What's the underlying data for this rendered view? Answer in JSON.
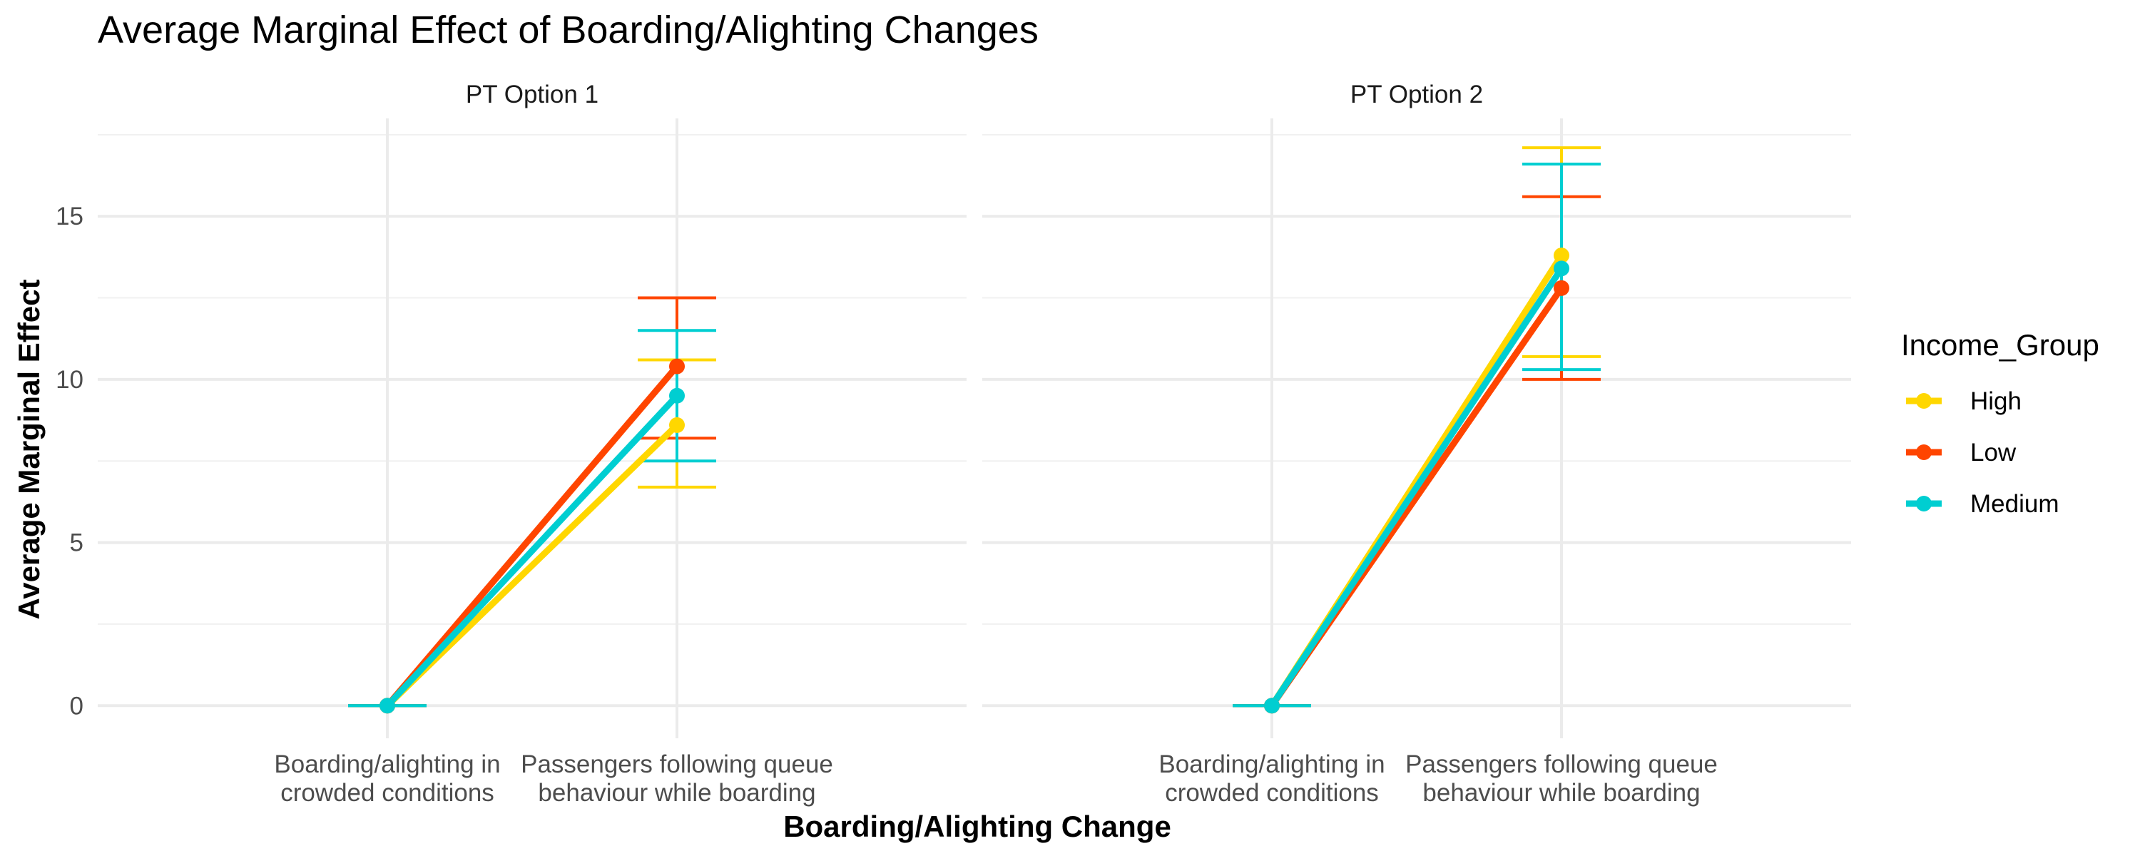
{
  "chart_data": {
    "type": "line",
    "title": "Average Marginal Effect of Boarding/Alighting Changes",
    "xlabel": "Boarding/Alighting Change",
    "ylabel": "Average Marginal Effect",
    "ylim": [
      -1,
      18
    ],
    "yticks": [
      0,
      5,
      10,
      15
    ],
    "categories": [
      [
        "Boarding/alighting in",
        "crowded conditions"
      ],
      [
        "Passengers following queue",
        "behaviour while boarding"
      ]
    ],
    "legend": {
      "title": "Income_Group",
      "position": "right"
    },
    "grid": true,
    "panels": [
      {
        "label": "PT Option 1",
        "series": [
          {
            "name": "High",
            "color": "#FFD700",
            "values": [
              0,
              8.6
            ],
            "err_low": [
              0,
              6.7
            ],
            "err_high": [
              0,
              10.6
            ]
          },
          {
            "name": "Low",
            "color": "#FF4500",
            "values": [
              0,
              10.4
            ],
            "err_low": [
              0,
              8.2
            ],
            "err_high": [
              0,
              12.5
            ]
          },
          {
            "name": "Medium",
            "color": "#00CED1",
            "values": [
              0,
              9.5
            ],
            "err_low": [
              0,
              7.5
            ],
            "err_high": [
              0,
              11.5
            ]
          }
        ]
      },
      {
        "label": "PT Option 2",
        "series": [
          {
            "name": "High",
            "color": "#FFD700",
            "values": [
              0,
              13.8
            ],
            "err_low": [
              0,
              10.7
            ],
            "err_high": [
              0,
              17.1
            ]
          },
          {
            "name": "Low",
            "color": "#FF4500",
            "values": [
              0,
              12.8
            ],
            "err_low": [
              0,
              10.0
            ],
            "err_high": [
              0,
              15.6
            ]
          },
          {
            "name": "Medium",
            "color": "#00CED1",
            "values": [
              0,
              13.4
            ],
            "err_low": [
              0,
              10.3
            ],
            "err_high": [
              0,
              16.6
            ]
          }
        ]
      }
    ]
  }
}
